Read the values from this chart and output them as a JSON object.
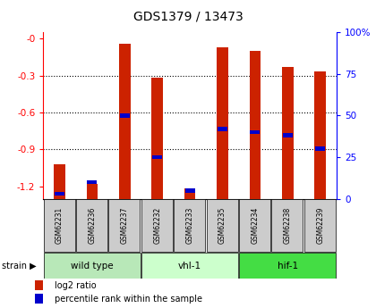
{
  "title": "GDS1379 / 13473",
  "samples": [
    "GSM62231",
    "GSM62236",
    "GSM62237",
    "GSM62232",
    "GSM62233",
    "GSM62235",
    "GSM62234",
    "GSM62238",
    "GSM62239"
  ],
  "log2_ratio": [
    -1.02,
    -1.18,
    -0.04,
    -0.32,
    -1.22,
    -0.07,
    -0.1,
    -0.23,
    -0.27
  ],
  "percentile_rank": [
    3,
    10,
    50,
    25,
    5,
    42,
    40,
    38,
    30
  ],
  "groups": [
    {
      "name": "wild type",
      "start": 0,
      "end": 3,
      "color": "#b8e8b8"
    },
    {
      "name": "vhl-1",
      "start": 3,
      "end": 6,
      "color": "#ccffcc"
    },
    {
      "name": "hif-1",
      "start": 6,
      "end": 9,
      "color": "#44dd44"
    }
  ],
  "ylim_left": [
    -1.3,
    0.05
  ],
  "ylim_right": [
    0,
    108.33
  ],
  "bar_color": "#cc2200",
  "percentile_color": "#0000cc",
  "background_color": "#ffffff",
  "tick_left": [
    0.0,
    -0.3,
    -0.6,
    -0.9,
    -1.2
  ],
  "tick_left_labels": [
    "-0",
    "-0.3",
    "-0.6",
    "-0.9",
    "-1.2"
  ],
  "tick_right": [
    0,
    25,
    50,
    75,
    100
  ],
  "tick_right_labels": [
    "0",
    "25",
    "50",
    "75",
    "100%"
  ],
  "bar_width": 0.35
}
